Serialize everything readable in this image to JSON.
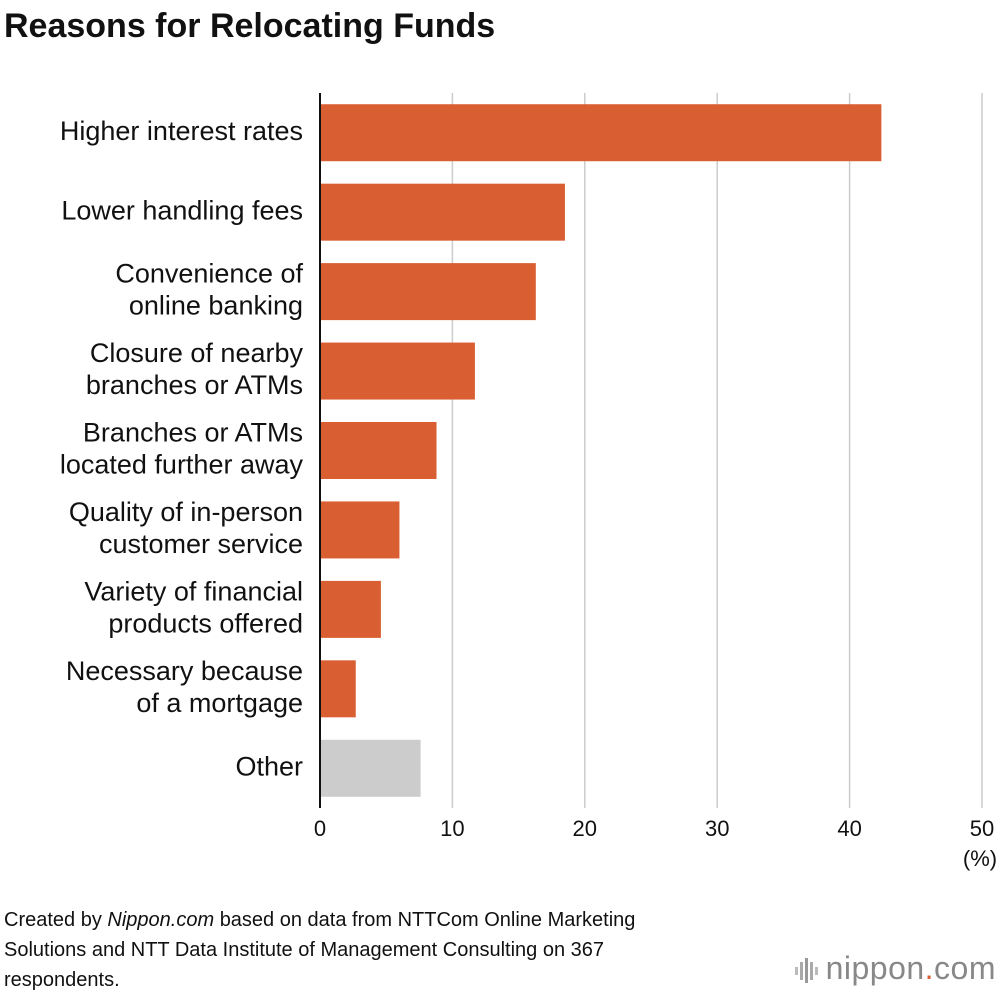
{
  "chart_data": {
    "type": "hbar",
    "title": "Reasons for Relocating Funds",
    "categories": [
      [
        "Higher interest rates"
      ],
      [
        "Lower handling fees"
      ],
      [
        "Convenience of",
        "online banking"
      ],
      [
        "Closure of nearby",
        "branches or ATMs"
      ],
      [
        "Branches or ATMs",
        "located further away"
      ],
      [
        "Quality of in-person",
        "customer service"
      ],
      [
        "Variety of financial",
        "products offered"
      ],
      [
        "Necessary because",
        "of a mortgage"
      ],
      [
        "Other"
      ]
    ],
    "values": [
      42.4,
      18.5,
      16.3,
      11.7,
      8.8,
      6.0,
      4.6,
      2.7,
      7.6
    ],
    "colors": [
      "#d95f33",
      "#d95f33",
      "#d95f33",
      "#d95f33",
      "#d95f33",
      "#d95f33",
      "#d95f33",
      "#d95f33",
      "#cccccc"
    ],
    "xlim": [
      0,
      50
    ],
    "xticks": [
      0,
      10,
      20,
      30,
      40,
      50
    ],
    "x_unit": "(%)",
    "grid": true,
    "source": {
      "prefix": "Created by",
      "emphasis": "Nippon.com",
      "text": "based on data from NTTCom Online Marketing Solutions and NTT Data Institute of Management Consulting on 367 respondents."
    },
    "logo": [
      "nippon",
      ".",
      "com"
    ]
  }
}
